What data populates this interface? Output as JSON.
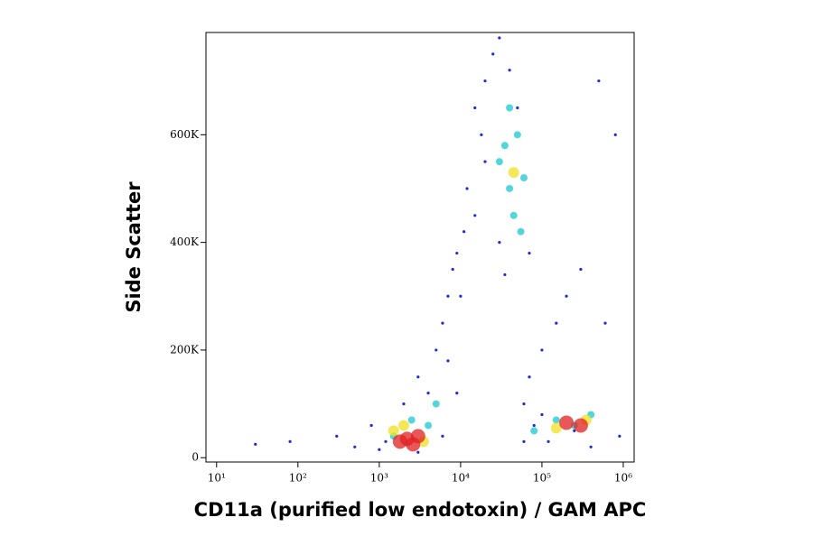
{
  "chart_data": {
    "type": "scatter",
    "x_label": "CD11a (purified low endotoxin) / GAM APC",
    "y_label": "Side Scatter",
    "xscale": "log",
    "xlim": [
      7.4,
      1360000
    ],
    "ylim": [
      -8000,
      790000
    ],
    "xticks": [
      {
        "value": 10,
        "label": "10¹"
      },
      {
        "value": 100,
        "label": "10²"
      },
      {
        "value": 1000,
        "label": "10³"
      },
      {
        "value": 10000,
        "label": "10⁴"
      },
      {
        "value": 100000,
        "label": "10⁵"
      },
      {
        "value": 1000000,
        "label": "10⁶"
      }
    ],
    "yticks": [
      0,
      {
        "value": 200000,
        "label": "200K"
      },
      {
        "value": 400000,
        "label": "400K"
      },
      {
        "value": 600000,
        "label": "600K"
      }
    ],
    "series": [
      {
        "color": "#1f2bd6",
        "x": [
          30,
          80,
          300,
          500,
          800,
          1200,
          2000,
          3000,
          5000,
          6000,
          7000,
          8000,
          9000,
          10000,
          12000,
          15000,
          20000,
          25000,
          30000,
          40000,
          50000,
          60000,
          70000,
          80000,
          100000,
          150000,
          200000,
          300000,
          500000,
          800000,
          3000,
          6000,
          9000,
          15000,
          20000,
          30000,
          60000,
          100000,
          250000,
          400000,
          1000,
          4000,
          7000,
          11000,
          18000,
          35000,
          70000,
          120000,
          600000,
          900000
        ],
        "y": [
          25000,
          30000,
          40000,
          20000,
          60000,
          30000,
          100000,
          150000,
          200000,
          250000,
          300000,
          350000,
          380000,
          300000,
          500000,
          650000,
          700000,
          750000,
          780000,
          720000,
          650000,
          100000,
          150000,
          60000,
          200000,
          250000,
          300000,
          350000,
          700000,
          600000,
          10000,
          40000,
          120000,
          450000,
          550000,
          400000,
          30000,
          80000,
          50000,
          20000,
          15000,
          120000,
          180000,
          420000,
          600000,
          340000,
          380000,
          30000,
          250000,
          40000
        ]
      },
      {
        "color": "#18c8d0",
        "x": [
          1500,
          2500,
          4000,
          5000,
          30000,
          40000,
          50000,
          45000,
          60000,
          40000,
          80000,
          150000,
          250000,
          400000,
          35000,
          55000
        ],
        "y": [
          40000,
          70000,
          60000,
          100000,
          550000,
          500000,
          600000,
          450000,
          520000,
          650000,
          50000,
          70000,
          60000,
          80000,
          580000,
          420000
        ]
      },
      {
        "color": "#f0e020",
        "x": [
          1500,
          3500,
          150000,
          350000,
          2000,
          45000
        ],
        "y": [
          50000,
          30000,
          55000,
          70000,
          60000,
          530000
        ]
      },
      {
        "color": "#e02020",
        "x": [
          1800,
          2200,
          2600,
          3000,
          200000,
          300000
        ],
        "y": [
          30000,
          35000,
          25000,
          40000,
          65000,
          60000
        ]
      }
    ]
  }
}
